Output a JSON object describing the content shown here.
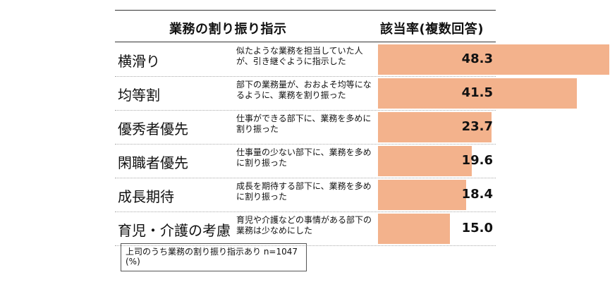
{
  "header": {
    "task_label": "業務の割り振り指示",
    "rate_label": "該当率(複数回答)"
  },
  "note": {
    "line1": "上司のうち業務の割り振り指示あり n=1047",
    "line2": "(%)"
  },
  "colors": {
    "bar": "#f3b28c"
  },
  "chart_data": {
    "type": "bar",
    "orientation": "horizontal",
    "title": "",
    "xlabel": "",
    "ylabel": "",
    "ylim": [
      0,
      48.3
    ],
    "categories": [
      "横滑り",
      "均等割",
      "優秀者優先",
      "閑職者優先",
      "成長期待",
      "育児・介護の考慮"
    ],
    "descriptions": [
      "似たような業務を担当していた人が、引き継ぐように指示した",
      "部下の業務量が、おおよそ均等になるように、業務を割り振った",
      "仕事ができる部下に、業務を多めに割り振った",
      "仕事量の少ない部下に、業務を多めに割り振った",
      "成長を期待する部下に、業務を多めに割り振った",
      "育児や介護などの事情がある部下の業務は少なめにした"
    ],
    "values": [
      48.3,
      41.5,
      23.7,
      19.6,
      18.4,
      15.0
    ],
    "value_labels": [
      "48.3",
      "41.5",
      "23.7",
      "19.6",
      "18.4",
      "15.0"
    ]
  }
}
